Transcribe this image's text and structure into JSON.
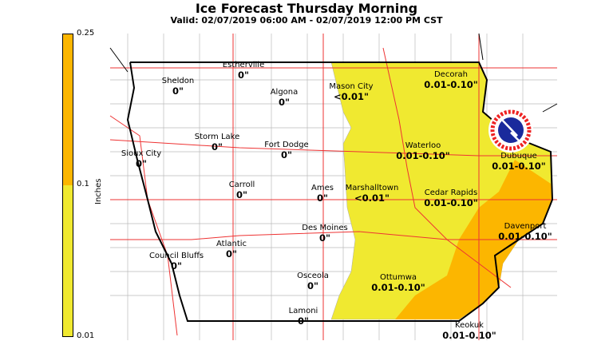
{
  "title": "Ice Forecast Thursday Morning",
  "subtitle": "Valid: 02/07/2019 06:00 AM - 02/07/2019 12:00 PM CST",
  "legend": {
    "unit": "Inches",
    "ticks": [
      "0.25",
      "0.1",
      "0.01"
    ],
    "colors": {
      "low": "#f0e930",
      "high": "#fcb600"
    }
  },
  "logo_text": "NATIONAL WEATHER SERVICE",
  "cities": [
    {
      "name": "Estherville",
      "value": "0\""
    },
    {
      "name": "Sheldon",
      "value": "0\""
    },
    {
      "name": "Algona",
      "value": "0\""
    },
    {
      "name": "Mason City",
      "value": "<0.01\""
    },
    {
      "name": "Decorah",
      "value": "0.01-0.10\""
    },
    {
      "name": "Storm Lake",
      "value": "0\""
    },
    {
      "name": "Fort Dodge",
      "value": "0\""
    },
    {
      "name": "Waterloo",
      "value": "0.01-0.10\""
    },
    {
      "name": "Dubuque",
      "value": "0.01-0.10\""
    },
    {
      "name": "Sioux City",
      "value": "0\""
    },
    {
      "name": "Carroll",
      "value": "0\""
    },
    {
      "name": "Ames",
      "value": "0\""
    },
    {
      "name": "Marshalltown",
      "value": "<0.01\""
    },
    {
      "name": "Cedar Rapids",
      "value": "0.01-0.10\""
    },
    {
      "name": "Des Moines",
      "value": "0\""
    },
    {
      "name": "Davenport",
      "value": "0.01-0.10\""
    },
    {
      "name": "Atlantic",
      "value": "0\""
    },
    {
      "name": "Council Bluffs",
      "value": "0\""
    },
    {
      "name": "Osceola",
      "value": "0\""
    },
    {
      "name": "Ottumwa",
      "value": "0.01-0.10\""
    },
    {
      "name": "Lamoni",
      "value": "0\""
    },
    {
      "name": "Keokuk",
      "value": "0.01-0.10\""
    }
  ]
}
